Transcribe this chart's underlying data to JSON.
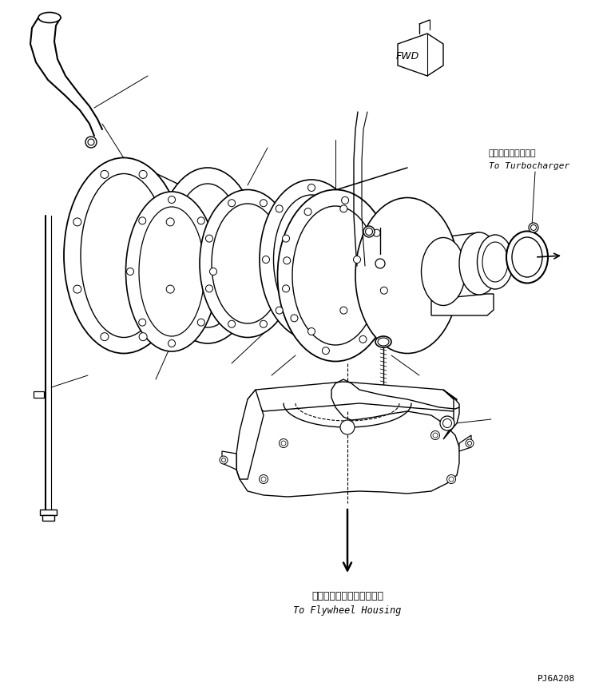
{
  "bg_color": "#ffffff",
  "line_color": "#000000",
  "fig_width": 7.5,
  "fig_height": 8.74,
  "dpi": 100,
  "turbo_label_jp": "ターボチャージャヘ",
  "turbo_label_en": "To Turbocharger",
  "flywheel_label_jp": "フライホイルハウジングヘ",
  "flywheel_label_en": "To Flywheel Housing",
  "part_id": "PJ6A208"
}
